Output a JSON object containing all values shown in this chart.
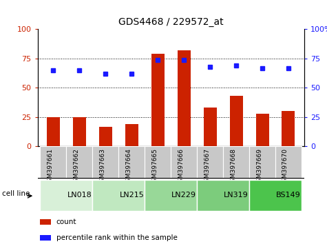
{
  "title": "GDS4468 / 229572_at",
  "samples": [
    "GSM397661",
    "GSM397662",
    "GSM397663",
    "GSM397664",
    "GSM397665",
    "GSM397666",
    "GSM397667",
    "GSM397668",
    "GSM397669",
    "GSM397670"
  ],
  "counts": [
    25,
    25,
    17,
    19,
    79,
    82,
    33,
    43,
    28,
    30
  ],
  "percentile_ranks": [
    65,
    65,
    62,
    62,
    74,
    74,
    68,
    69,
    67,
    67
  ],
  "cell_lines": [
    {
      "name": "LN018",
      "start": 0,
      "end": 2,
      "color": "#d8f0d8"
    },
    {
      "name": "LN215",
      "start": 2,
      "end": 4,
      "color": "#c0e8c0"
    },
    {
      "name": "LN229",
      "start": 4,
      "end": 6,
      "color": "#98d898"
    },
    {
      "name": "LN319",
      "start": 6,
      "end": 8,
      "color": "#7ccc7c"
    },
    {
      "name": "BS149",
      "start": 8,
      "end": 10,
      "color": "#4cc44c"
    }
  ],
  "ylim": [
    0,
    100
  ],
  "bar_color": "#cc2200",
  "dot_color": "#1a1aff",
  "left_tick_color": "#cc2200",
  "right_tick_color": "#1a1aff",
  "yticks": [
    0,
    25,
    50,
    75,
    100
  ],
  "tick_labels_left": [
    "0",
    "25",
    "50",
    "75",
    "100"
  ],
  "tick_labels_right": [
    "0",
    "25",
    "50",
    "75",
    "100%"
  ],
  "xtick_bg_color": "#c8c8c8",
  "legend_count_label": "count",
  "legend_percentile_label": "percentile rank within the sample",
  "cell_line_label": "cell line",
  "title_fontsize": 10,
  "bar_width": 0.5
}
